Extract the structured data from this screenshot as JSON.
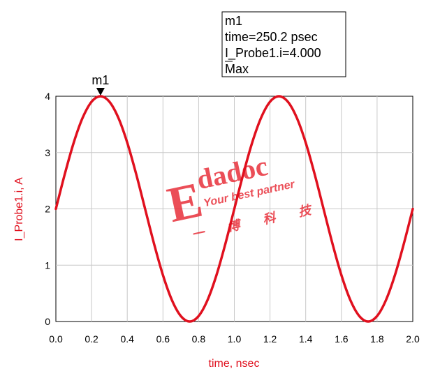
{
  "chart_data": {
    "type": "line",
    "xlabel": "time, nsec",
    "ylabel": "I_Probe1.i, A",
    "xlim": [
      0,
      2.0
    ],
    "ylim": [
      0,
      4
    ],
    "x_ticks": [
      "0.0",
      "0.2",
      "0.4",
      "0.6",
      "0.8",
      "1.0",
      "1.2",
      "1.4",
      "1.6",
      "1.8",
      "2.0"
    ],
    "y_ticks": [
      "0",
      "1",
      "2",
      "3",
      "4"
    ],
    "grid": true,
    "series": [
      {
        "color": "#e0101e",
        "x": [
          0.0,
          0.05,
          0.1,
          0.15,
          0.2,
          0.25,
          0.3,
          0.35,
          0.4,
          0.45,
          0.5,
          0.55,
          0.6,
          0.65,
          0.7,
          0.75,
          0.8,
          0.85,
          0.9,
          0.95,
          1.0,
          1.05,
          1.1,
          1.15,
          1.2,
          1.25,
          1.3,
          1.35,
          1.4,
          1.45,
          1.5,
          1.55,
          1.6,
          1.65,
          1.7,
          1.75,
          1.8,
          1.85,
          1.9,
          1.95,
          2.0
        ],
        "y": [
          2.0,
          2.618,
          3.176,
          3.618,
          3.902,
          4.0,
          3.902,
          3.618,
          3.176,
          2.618,
          2.0,
          1.382,
          0.824,
          0.382,
          0.098,
          0.0,
          0.098,
          0.382,
          0.824,
          1.382,
          2.0,
          2.618,
          3.176,
          3.618,
          3.902,
          4.0,
          3.902,
          3.618,
          3.176,
          2.618,
          2.0,
          1.382,
          0.824,
          0.382,
          0.098,
          0.0,
          0.098,
          0.382,
          0.824,
          1.382,
          2.0
        ]
      }
    ],
    "marker": {
      "name": "m1",
      "x": 0.2502,
      "y": 4.0,
      "lines": [
        "m1",
        "time=250.2 psec",
        "I_Probe1.i=4.000",
        "Max"
      ]
    }
  },
  "watermark": {
    "brand": "Edadoc",
    "slogan": "Your best partner",
    "chinese": [
      "一",
      "博",
      "科",
      "技"
    ],
    "color": "#e8303a"
  }
}
